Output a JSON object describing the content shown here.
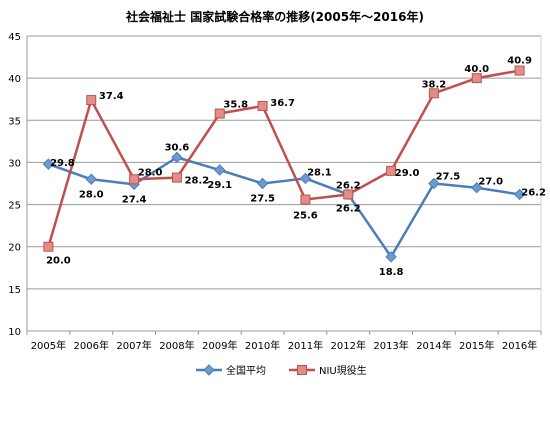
{
  "chart_data": {
    "type": "line",
    "title": "社会福祉士 国家試験合格率の推移(2005年～2016年)",
    "categories": [
      "2005年",
      "2006年",
      "2007年",
      "2008年",
      "2009年",
      "2010年",
      "2011年",
      "2012年",
      "2013年",
      "2014年",
      "2015年",
      "2016年"
    ],
    "ylim": [
      10,
      45
    ],
    "yticks": [
      10,
      15,
      20,
      25,
      30,
      35,
      40,
      45
    ],
    "grid": true,
    "legend_position": "bottom",
    "series": [
      {
        "name": "全国平均",
        "color": "#4a7ebb",
        "marker": "diamond",
        "values": [
          29.8,
          28.0,
          27.4,
          30.6,
          29.1,
          27.5,
          28.1,
          26.2,
          18.8,
          27.5,
          27.0,
          26.2
        ],
        "labels": [
          "29.8",
          "28.0",
          "27.4",
          "30.6",
          "29.1",
          "27.5",
          "28.1",
          "26.2",
          "18.8",
          "27.5",
          "27.0",
          "26.2"
        ]
      },
      {
        "name": "NIU現役生",
        "color": "#c0504d",
        "marker": "square",
        "values": [
          20.0,
          37.4,
          28.0,
          28.2,
          35.8,
          36.7,
          25.6,
          26.2,
          29.0,
          38.2,
          40.0,
          40.9
        ],
        "labels": [
          "20.0",
          "37.4",
          "28.0",
          "28.2",
          "35.8",
          "36.7",
          "25.6",
          "26.2",
          "29.0",
          "38.2",
          "40.0",
          "40.9"
        ]
      }
    ]
  }
}
